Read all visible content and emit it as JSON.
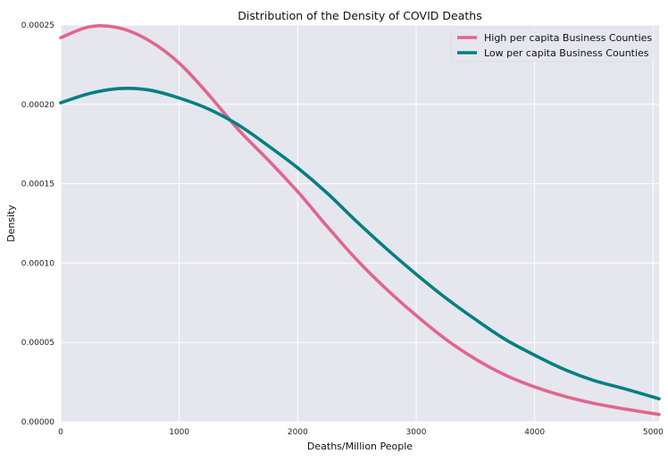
{
  "chart_data": {
    "type": "line",
    "title": "Distribution of the Density of COVID Deaths",
    "xlabel": "Deaths/Million People",
    "ylabel": "Density",
    "xlim": [
      0,
      5050
    ],
    "ylim": [
      0,
      0.00025
    ],
    "x_ticks": [
      0,
      1000,
      2000,
      3000,
      4000,
      5000
    ],
    "x_tick_labels": [
      "0",
      "1000",
      "2000",
      "3000",
      "4000",
      "5000"
    ],
    "y_ticks": [
      0,
      5e-05,
      0.0001,
      0.00015,
      0.0002,
      0.00025
    ],
    "y_tick_labels": [
      "0.00000",
      "0.00005",
      "0.00010",
      "0.00015",
      "0.00020",
      "0.00025"
    ],
    "grid": true,
    "legend_position": "top-right",
    "background_color": "#e6e6ef",
    "grid_color": "#ffffff",
    "series": [
      {
        "name": "High per capita Business Counties",
        "color": "#e0668c",
        "x": [
          0,
          250,
          500,
          750,
          1000,
          1250,
          1500,
          1750,
          2000,
          2250,
          2500,
          2750,
          3000,
          3250,
          3500,
          3750,
          4000,
          4250,
          4500,
          4750,
          5050
        ],
        "y": [
          0.000242,
          0.000249,
          0.000248,
          0.00024,
          0.000226,
          0.000206,
          0.000184,
          0.000165,
          0.000145,
          0.000123,
          0.000102,
          8.35e-05,
          6.7e-05,
          5.2e-05,
          3.95e-05,
          2.95e-05,
          2.2e-05,
          1.61e-05,
          1.16e-05,
          8.2e-06,
          4.6e-06
        ]
      },
      {
        "name": "Low per capita Business Counties",
        "color": "#008080",
        "x": [
          0,
          250,
          500,
          750,
          1000,
          1250,
          1500,
          1750,
          2000,
          2250,
          2500,
          2750,
          3000,
          3250,
          3500,
          3750,
          4000,
          4250,
          4500,
          4750,
          5050
        ],
        "y": [
          0.000201,
          0.000207,
          0.00021,
          0.000209,
          0.000204,
          0.000197,
          0.000187,
          0.000174,
          0.00016,
          0.000144,
          0.000126,
          0.000109,
          9.3e-05,
          7.8e-05,
          6.45e-05,
          5.2e-05,
          4.2e-05,
          3.3e-05,
          2.6e-05,
          2.1e-05,
          1.45e-05
        ]
      }
    ]
  }
}
